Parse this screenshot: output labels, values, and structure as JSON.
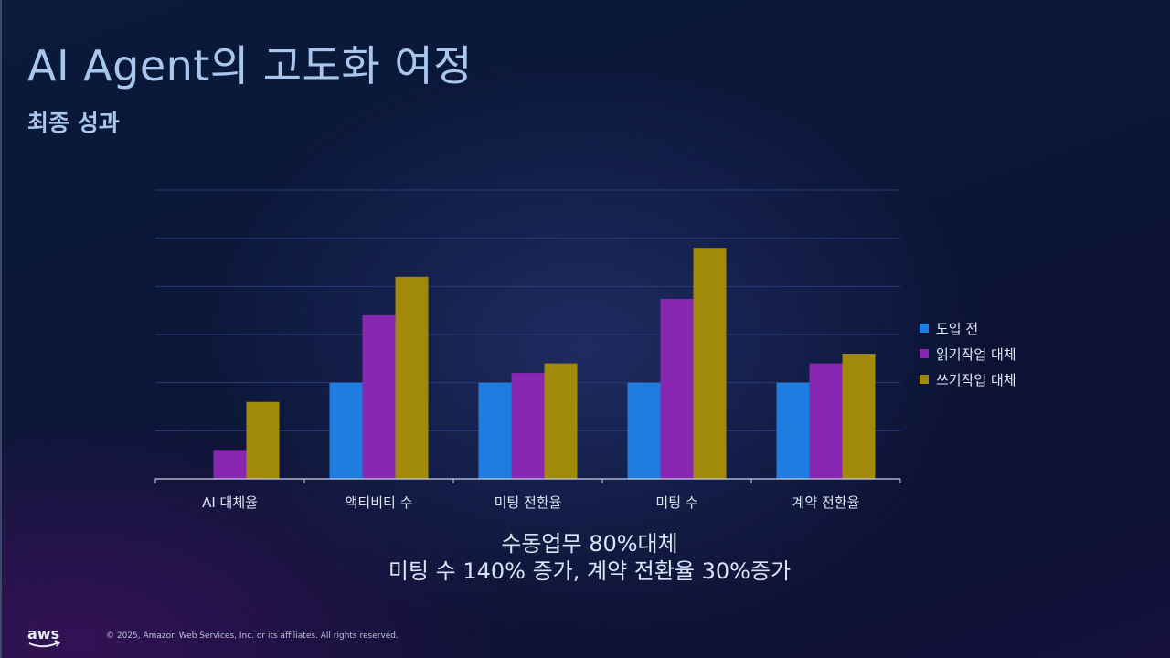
{
  "slide": {
    "title": "AI Agent의 고도화 여정",
    "subtitle": "최종 성과",
    "caption_line1": "수동업무 80%대체",
    "caption_line2": "미팅 수 140% 증가, 계약 전환율 30%증가",
    "copyright": "© 2025, Amazon Web Services, Inc. or its affiliates. All rights reserved.",
    "logo_text": "aws",
    "logo_icon": "aws-smile-arrow"
  },
  "chart_data": {
    "type": "bar",
    "categories": [
      "AI 대체율",
      "액티비티 수",
      "미팅 전환율",
      "미팅 수",
      "계약 전환율"
    ],
    "series": [
      {
        "name": "도입 전",
        "color": "#1f7de0",
        "values": [
          0,
          100,
          100,
          100,
          100
        ]
      },
      {
        "name": "읽기작업 대체",
        "color": "#8a27b0",
        "values": [
          30,
          170,
          110,
          187,
          120
        ]
      },
      {
        "name": "쓰기작업 대체",
        "color": "#a08a07",
        "values": [
          80,
          210,
          120,
          240,
          130
        ]
      }
    ],
    "ylim": [
      0,
      300
    ],
    "gridlines": true,
    "y_tick_labels_shown": false,
    "legend_position": "right",
    "grid_color": "#2b3a78",
    "axis_color": "#c8d2e4",
    "label_color": "#dbe6f5"
  }
}
